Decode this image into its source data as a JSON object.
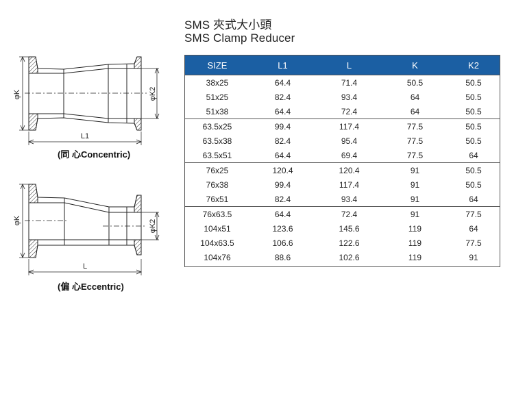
{
  "title": {
    "chinese": "SMS 夾式大小頭",
    "english": "SMS Clamp Reducer"
  },
  "drawings": {
    "concentric": {
      "caption": "(同 心Concentric)",
      "dim_k": "φK",
      "dim_k2": "φK2",
      "dim_l": "L1"
    },
    "eccentric": {
      "caption": "(偏 心Eccentric)",
      "dim_k": "φK",
      "dim_k2": "φK2",
      "dim_l": "L"
    }
  },
  "table": {
    "headers": [
      "SIZE",
      "L1",
      "L",
      "K",
      "K2"
    ],
    "groups": [
      [
        [
          "38x25",
          "64.4",
          "71.4",
          "50.5",
          "50.5"
        ],
        [
          "51x25",
          "82.4",
          "93.4",
          "64",
          "50.5"
        ],
        [
          "51x38",
          "64.4",
          "72.4",
          "64",
          "50.5"
        ]
      ],
      [
        [
          "63.5x25",
          "99.4",
          "117.4",
          "77.5",
          "50.5"
        ],
        [
          "63.5x38",
          "82.4",
          "95.4",
          "77.5",
          "50.5"
        ],
        [
          "63.5x51",
          "64.4",
          "69.4",
          "77.5",
          "64"
        ]
      ],
      [
        [
          "76x25",
          "120.4",
          "120.4",
          "91",
          "50.5"
        ],
        [
          "76x38",
          "99.4",
          "117.4",
          "91",
          "50.5"
        ],
        [
          "76x51",
          "82.4",
          "93.4",
          "91",
          "64"
        ]
      ],
      [
        [
          "76x63.5",
          "64.4",
          "72.4",
          "91",
          "77.5"
        ],
        [
          "104x51",
          "123.6",
          "145.6",
          "119",
          "64"
        ],
        [
          "104x63.5",
          "106.6",
          "122.6",
          "119",
          "77.5"
        ],
        [
          "104x76",
          "88.6",
          "102.6",
          "119",
          "91"
        ]
      ]
    ]
  }
}
